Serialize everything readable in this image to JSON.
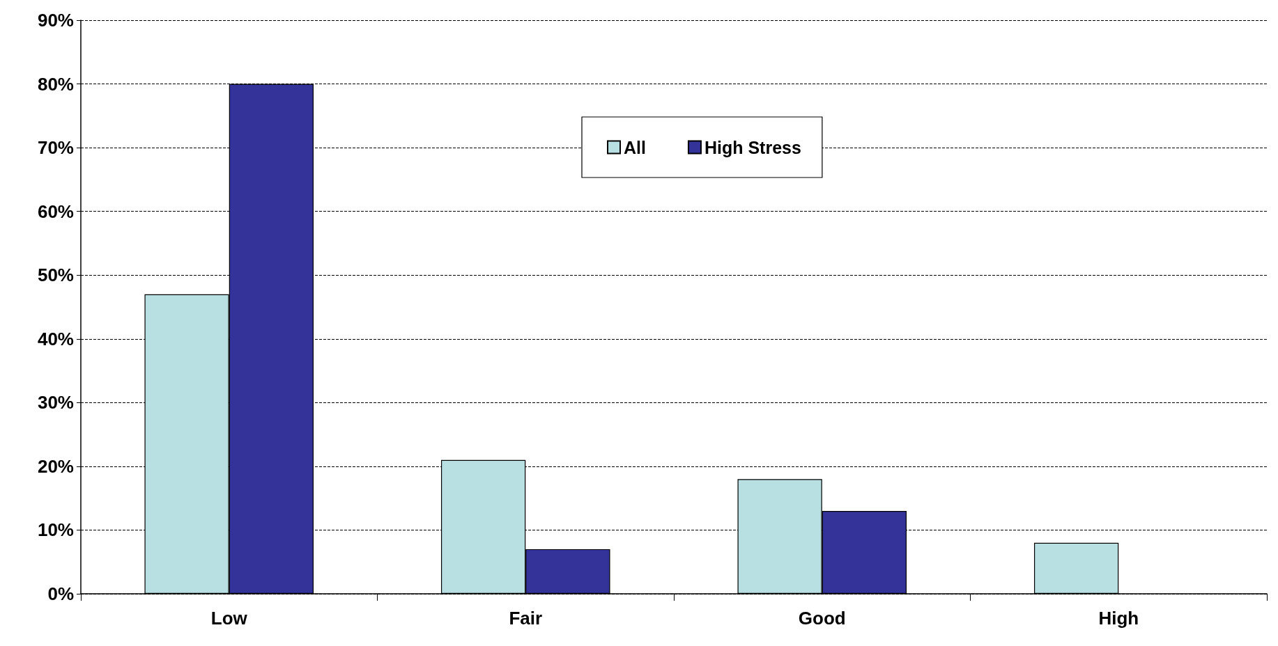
{
  "chart_data": {
    "type": "bar",
    "categories": [
      "Low",
      "Fair",
      "Good",
      "High"
    ],
    "series": [
      {
        "name": "All",
        "color": "#b8e0e2",
        "values": [
          47,
          21,
          18,
          8
        ]
      },
      {
        "name": "High Stress",
        "color": "#333399",
        "values": [
          80,
          7,
          13,
          null
        ]
      }
    ],
    "ylim": [
      0,
      90
    ],
    "yticks": [
      {
        "value": 0,
        "label": "0%"
      },
      {
        "value": 10,
        "label": "10%"
      },
      {
        "value": 20,
        "label": "20%"
      },
      {
        "value": 30,
        "label": "30%"
      },
      {
        "value": 40,
        "label": "40%"
      },
      {
        "value": 50,
        "label": "50%"
      },
      {
        "value": 60,
        "label": "60%"
      },
      {
        "value": 70,
        "label": "70%"
      },
      {
        "value": 80,
        "label": "80%"
      },
      {
        "value": 90,
        "label": "90%"
      }
    ],
    "grid": "y",
    "legend": "top"
  }
}
